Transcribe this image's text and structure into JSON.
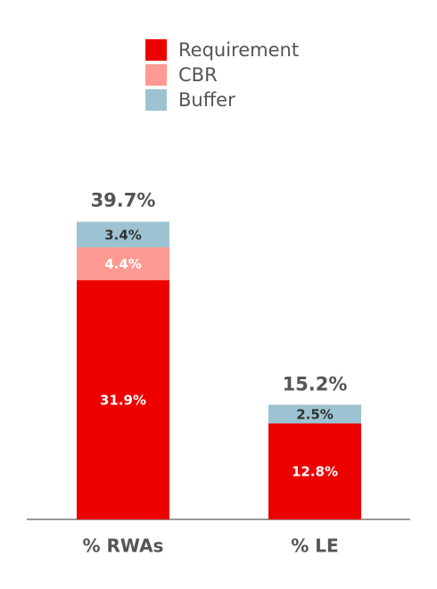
{
  "chart_data": {
    "type": "stacked-bar",
    "categories": [
      "% RWAs",
      "% LE"
    ],
    "series": [
      {
        "name": "Requirement",
        "color": "#ec0000",
        "values": [
          31.9,
          12.8
        ],
        "value_labels": [
          "31.9%",
          "12.8%"
        ]
      },
      {
        "name": "CBR",
        "color": "#ff9a92",
        "values": [
          4.4,
          null
        ],
        "value_labels": [
          "4.4%",
          null
        ]
      },
      {
        "name": "Buffer",
        "color": "#9dc3d3",
        "values": [
          3.4,
          2.5
        ],
        "value_labels": [
          "3.4%",
          "2.5%"
        ]
      }
    ],
    "totals": {
      "values": [
        39.7,
        15.2
      ],
      "value_labels": [
        "39.7%",
        "15.2%"
      ]
    }
  }
}
